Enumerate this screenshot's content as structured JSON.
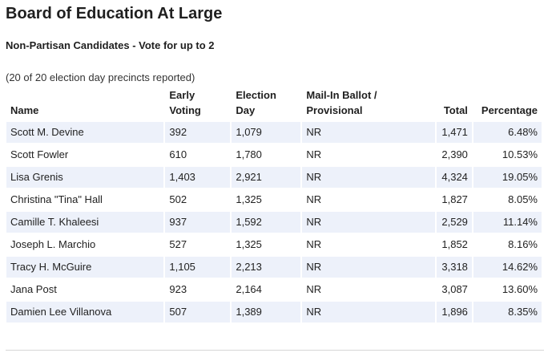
{
  "contest": {
    "title": "Board of Education At Large",
    "subtitle": "Non-Partisan Candidates - Vote for up to 2",
    "precincts_reported": "(20 of 20 election day precincts reported)"
  },
  "table": {
    "headers": {
      "name": "Name",
      "early_voting_line1": "Early",
      "early_voting_line2": "Voting",
      "election_day_line1": "Election",
      "election_day_line2": "Day",
      "mail_in_line1": "Mail-In Ballot /",
      "mail_in_line2": "Provisional",
      "total": "Total",
      "percentage": "Percentage"
    },
    "rows": [
      {
        "name": "Scott M. Devine",
        "early": "392",
        "election_day": "1,079",
        "mail_in": "NR",
        "total": "1,471",
        "percentage": "6.48%"
      },
      {
        "name": "Scott Fowler",
        "early": "610",
        "election_day": "1,780",
        "mail_in": "NR",
        "total": "2,390",
        "percentage": "10.53%"
      },
      {
        "name": "Lisa Grenis",
        "early": "1,403",
        "election_day": "2,921",
        "mail_in": "NR",
        "total": "4,324",
        "percentage": "19.05%"
      },
      {
        "name": "Christina \"Tina\" Hall",
        "early": "502",
        "election_day": "1,325",
        "mail_in": "NR",
        "total": "1,827",
        "percentage": "8.05%"
      },
      {
        "name": "Camille T. Khaleesi",
        "early": "937",
        "election_day": "1,592",
        "mail_in": "NR",
        "total": "2,529",
        "percentage": "11.14%"
      },
      {
        "name": "Joseph L. Marchio",
        "early": "527",
        "election_day": "1,325",
        "mail_in": "NR",
        "total": "1,852",
        "percentage": "8.16%"
      },
      {
        "name": "Tracy H. McGuire",
        "early": "1,105",
        "election_day": "2,213",
        "mail_in": "NR",
        "total": "3,318",
        "percentage": "14.62%"
      },
      {
        "name": "Jana Post",
        "early": "923",
        "election_day": "2,164",
        "mail_in": "NR",
        "total": "3,087",
        "percentage": "13.60%"
      },
      {
        "name": "Damien Lee Villanova",
        "early": "507",
        "election_day": "1,389",
        "mail_in": "NR",
        "total": "1,896",
        "percentage": "8.35%"
      }
    ]
  },
  "colors": {
    "stripe": "#edf1fa",
    "text": "#222222"
  }
}
